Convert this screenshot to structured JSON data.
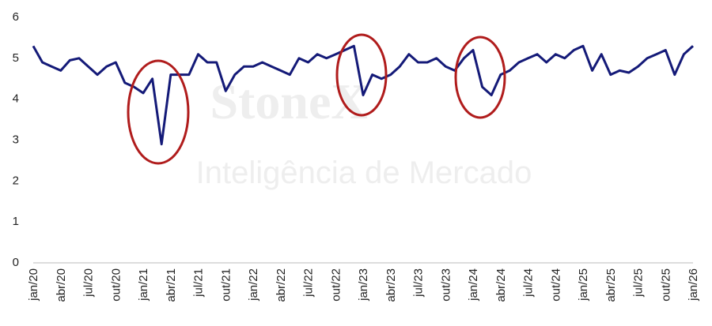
{
  "chart_data": {
    "type": "line",
    "watermark": {
      "brand": "StoneX",
      "subtitle": "Inteligência de Mercado"
    },
    "categories": [
      "jan/20",
      null,
      null,
      "abr/20",
      null,
      null,
      "jul/20",
      null,
      null,
      "out/20",
      null,
      null,
      "jan/21",
      null,
      null,
      "abr/21",
      null,
      null,
      "jul/21",
      null,
      null,
      "out/21",
      null,
      null,
      "jan/22",
      null,
      null,
      "abr/22",
      null,
      null,
      "jul/22",
      null,
      null,
      "out/22",
      null,
      null,
      "jan/23",
      null,
      null,
      "abr/23",
      null,
      null,
      "jul/23",
      null,
      null,
      "out/23",
      null,
      null,
      "jan/24",
      null,
      null,
      "abr/24",
      null,
      null,
      "jul/24",
      null,
      null,
      "out/24",
      null,
      null,
      "jan/25",
      null,
      null,
      "abr/25",
      null,
      null,
      "jul/25",
      null,
      null,
      "out/25",
      null,
      null,
      "jan/26"
    ],
    "series": [
      {
        "name": null,
        "color": "#141a78",
        "values": [
          5.3,
          4.9,
          4.8,
          4.7,
          4.95,
          5.0,
          4.8,
          4.6,
          4.8,
          4.9,
          4.4,
          4.3,
          4.15,
          4.5,
          2.9,
          4.6,
          4.6,
          4.6,
          5.1,
          4.9,
          4.9,
          4.2,
          4.6,
          4.8,
          4.8,
          4.9,
          4.8,
          4.7,
          4.6,
          5.0,
          4.9,
          5.1,
          5.0,
          5.1,
          5.2,
          5.3,
          4.1,
          4.6,
          4.5,
          4.6,
          4.8,
          5.1,
          4.9,
          4.9,
          5.0,
          4.8,
          4.7,
          5.0,
          5.2,
          4.3,
          4.1,
          4.6,
          4.7,
          4.9,
          5.0,
          5.1,
          4.9,
          5.1,
          5.0,
          5.2,
          5.3,
          4.7,
          5.1,
          4.6,
          4.7,
          4.65,
          4.8,
          5.0,
          5.1,
          5.2,
          4.6,
          5.1,
          5.3
        ]
      }
    ],
    "ylim": [
      0,
      6
    ],
    "yticks": [
      0,
      1,
      2,
      3,
      4,
      5,
      6
    ],
    "grid": false
  }
}
